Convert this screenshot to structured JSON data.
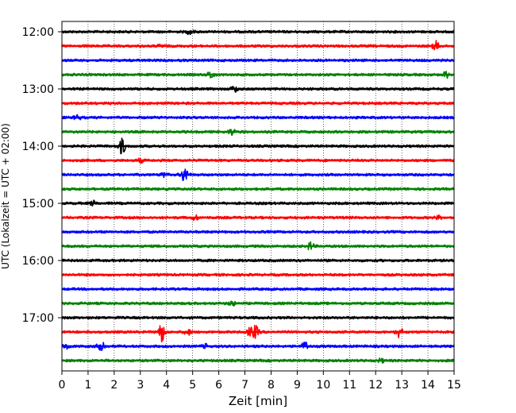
{
  "chart_data": {
    "type": "line",
    "title": "",
    "xlabel": "Zeit  [min]",
    "ylabel": "UTC (Lokalzeit = UTC + 02:00)",
    "xlim": [
      0,
      15
    ],
    "x_ticks": [
      0,
      1,
      2,
      3,
      4,
      5,
      6,
      7,
      8,
      9,
      10,
      11,
      12,
      13,
      14,
      15
    ],
    "y_tick_labels": [
      "12:00",
      "13:00",
      "14:00",
      "15:00",
      "16:00",
      "17:00"
    ],
    "grid": "vertical dotted lines at each minute",
    "trace_interval_minutes": 15,
    "colors": [
      "#000000",
      "#ff0000",
      "#0000ff",
      "#008000"
    ],
    "traces": [
      {
        "start": "12:00",
        "color": "#000000",
        "events": [
          {
            "t": 4.9,
            "amp": 0.15
          }
        ]
      },
      {
        "start": "12:15",
        "color": "#ff0000",
        "events": [
          {
            "t": 14.3,
            "amp": 0.3
          },
          {
            "t": 3.8,
            "amp": 0.1
          }
        ]
      },
      {
        "start": "12:30",
        "color": "#0000ff",
        "events": []
      },
      {
        "start": "12:45",
        "color": "#008000",
        "events": [
          {
            "t": 5.7,
            "amp": 0.25
          },
          {
            "t": 14.7,
            "amp": 0.2
          }
        ]
      },
      {
        "start": "13:00",
        "color": "#000000",
        "events": [
          {
            "t": 6.6,
            "amp": 0.2
          }
        ]
      },
      {
        "start": "13:15",
        "color": "#ff0000",
        "events": []
      },
      {
        "start": "13:30",
        "color": "#0000ff",
        "events": [
          {
            "t": 0.6,
            "amp": 0.15
          }
        ]
      },
      {
        "start": "13:45",
        "color": "#008000",
        "events": [
          {
            "t": 6.5,
            "amp": 0.2
          }
        ]
      },
      {
        "start": "14:00",
        "color": "#000000",
        "events": [
          {
            "t": 2.3,
            "amp": 0.55
          }
        ]
      },
      {
        "start": "14:15",
        "color": "#ff0000",
        "events": [
          {
            "t": 3.0,
            "amp": 0.12
          }
        ]
      },
      {
        "start": "14:30",
        "color": "#0000ff",
        "events": [
          {
            "t": 4.7,
            "amp": 0.55
          },
          {
            "t": 3.9,
            "amp": 0.15
          }
        ]
      },
      {
        "start": "14:45",
        "color": "#008000",
        "events": []
      },
      {
        "start": "15:00",
        "color": "#000000",
        "events": [
          {
            "t": 1.2,
            "amp": 0.15
          }
        ]
      },
      {
        "start": "15:15",
        "color": "#ff0000",
        "events": [
          {
            "t": 5.1,
            "amp": 0.15
          },
          {
            "t": 14.4,
            "amp": 0.1
          }
        ]
      },
      {
        "start": "15:30",
        "color": "#0000ff",
        "events": []
      },
      {
        "start": "15:45",
        "color": "#008000",
        "events": [
          {
            "t": 9.5,
            "amp": 0.25
          }
        ]
      },
      {
        "start": "16:00",
        "color": "#000000",
        "events": []
      },
      {
        "start": "16:15",
        "color": "#ff0000",
        "events": []
      },
      {
        "start": "16:30",
        "color": "#0000ff",
        "events": []
      },
      {
        "start": "16:45",
        "color": "#008000",
        "events": [
          {
            "t": 6.5,
            "amp": 0.15
          }
        ]
      },
      {
        "start": "17:00",
        "color": "#000000",
        "events": []
      },
      {
        "start": "17:15",
        "color": "#ff0000",
        "events": [
          {
            "t": 3.8,
            "amp": 0.7
          },
          {
            "t": 4.8,
            "amp": 0.2
          },
          {
            "t": 7.2,
            "amp": 0.25
          },
          {
            "t": 7.4,
            "amp": 0.4
          },
          {
            "t": 12.9,
            "amp": 0.35
          }
        ]
      },
      {
        "start": "17:30",
        "color": "#0000ff",
        "events": [
          {
            "t": 1.5,
            "amp": 0.5
          },
          {
            "t": 0.2,
            "amp": 0.15
          },
          {
            "t": 5.5,
            "amp": 0.12
          },
          {
            "t": 9.3,
            "amp": 0.3
          }
        ]
      },
      {
        "start": "17:45",
        "color": "#008000",
        "events": [
          {
            "t": 12.2,
            "amp": 0.12
          }
        ]
      }
    ]
  }
}
